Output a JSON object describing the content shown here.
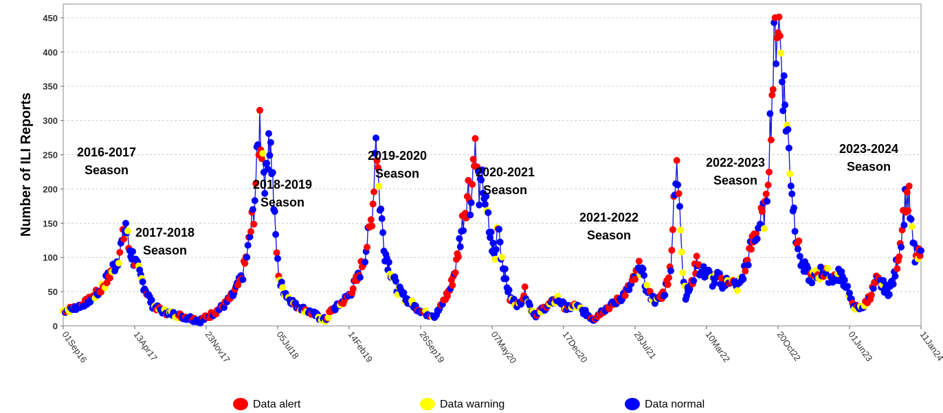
{
  "chart_data": {
    "type": "line",
    "ylabel": "Number of ILI Reports",
    "xlabel": "",
    "ylim": [
      0,
      470
    ],
    "y_ticks": [
      0,
      50,
      100,
      150,
      200,
      250,
      300,
      350,
      400,
      450
    ],
    "x_tick_labels": [
      "01Sep16",
      "13Apr17",
      "23Nov17",
      "05Jul18",
      "14Feb19",
      "26Sep19",
      "07May20",
      "17Dec20",
      "29Jul21",
      "10Mar22",
      "20Oct22",
      "01Jun23",
      "11Jan24"
    ],
    "grid": true,
    "legend_position": "bottom",
    "colors": {
      "line": "#1a1ad6",
      "alert": "#ff0000",
      "warning": "#ffff00",
      "normal": "#0000ff",
      "grid": "#cccccc"
    },
    "series": [
      {
        "name": "Data alert",
        "color": "#ff0000"
      },
      {
        "name": "Data warning",
        "color": "#ffff00"
      },
      {
        "name": "Data normal",
        "color": "#0000ff"
      }
    ],
    "seasons": [
      {
        "lines": [
          "2016-2017",
          "Season"
        ]
      },
      {
        "lines": [
          "2017-2018",
          "Season"
        ]
      },
      {
        "lines": [
          "2018-2019",
          "Season"
        ]
      },
      {
        "lines": [
          "2019-2020",
          "Season"
        ]
      },
      {
        "lines": [
          "2020-2021",
          "Season"
        ]
      },
      {
        "lines": [
          "2021-2022",
          "Season"
        ]
      },
      {
        "lines": [
          "2022-2023",
          "Season"
        ]
      },
      {
        "lines": [
          "2023-2024",
          "Season"
        ]
      }
    ],
    "weekly_profile": [
      [
        0,
        22
      ],
      [
        3,
        25
      ],
      [
        6,
        30
      ],
      [
        9,
        38
      ],
      [
        12,
        50
      ],
      [
        15,
        70
      ],
      [
        18,
        95
      ],
      [
        20,
        125
      ],
      [
        21,
        150
      ],
      [
        22,
        115
      ],
      [
        24,
        95
      ],
      [
        26,
        70
      ],
      [
        28,
        50
      ],
      [
        30,
        30
      ],
      [
        33,
        22
      ],
      [
        36,
        18
      ],
      [
        40,
        14
      ],
      [
        44,
        10
      ],
      [
        46,
        8
      ],
      [
        48,
        12
      ],
      [
        51,
        20
      ],
      [
        54,
        30
      ],
      [
        57,
        45
      ],
      [
        60,
        70
      ],
      [
        62,
        110
      ],
      [
        64,
        170
      ],
      [
        65,
        230
      ],
      [
        66,
        300
      ],
      [
        67,
        250
      ],
      [
        68,
        210
      ],
      [
        69,
        290
      ],
      [
        70,
        240
      ],
      [
        71,
        150
      ],
      [
        72,
        90
      ],
      [
        73,
        60
      ],
      [
        75,
        45
      ],
      [
        78,
        30
      ],
      [
        82,
        22
      ],
      [
        85,
        15
      ],
      [
        88,
        8
      ],
      [
        90,
        22
      ],
      [
        93,
        32
      ],
      [
        96,
        45
      ],
      [
        99,
        70
      ],
      [
        101,
        100
      ],
      [
        103,
        140
      ],
      [
        104,
        180
      ],
      [
        105,
        290
      ],
      [
        106,
        200
      ],
      [
        107,
        150
      ],
      [
        108,
        110
      ],
      [
        110,
        80
      ],
      [
        112,
        55
      ],
      [
        115,
        40
      ],
      [
        119,
        25
      ],
      [
        122,
        18
      ],
      [
        125,
        15
      ],
      [
        127,
        30
      ],
      [
        130,
        55
      ],
      [
        132,
        90
      ],
      [
        134,
        150
      ],
      [
        136,
        200
      ],
      [
        137,
        180
      ],
      [
        138,
        270
      ],
      [
        139,
        220
      ],
      [
        140,
        190
      ],
      [
        141,
        210
      ],
      [
        142,
        170
      ],
      [
        143,
        140
      ],
      [
        144,
        120
      ],
      [
        145,
        95
      ],
      [
        146,
        160
      ],
      [
        147,
        110
      ],
      [
        148,
        80
      ],
      [
        150,
        40
      ],
      [
        153,
        30
      ],
      [
        155,
        50
      ],
      [
        157,
        25
      ],
      [
        159,
        15
      ],
      [
        161,
        25
      ],
      [
        163,
        30
      ],
      [
        166,
        40
      ],
      [
        169,
        25
      ],
      [
        172,
        30
      ],
      [
        175,
        20
      ],
      [
        178,
        10
      ],
      [
        181,
        22
      ],
      [
        184,
        30
      ],
      [
        187,
        40
      ],
      [
        190,
        55
      ],
      [
        192,
        70
      ],
      [
        194,
        90
      ],
      [
        195,
        65
      ],
      [
        197,
        45
      ],
      [
        199,
        35
      ],
      [
        202,
        50
      ],
      [
        204,
        90
      ],
      [
        205,
        170
      ],
      [
        206,
        225
      ],
      [
        207,
        195
      ],
      [
        208,
        80
      ],
      [
        209,
        45
      ],
      [
        211,
        60
      ],
      [
        213,
        100
      ],
      [
        214,
        75
      ],
      [
        216,
        80
      ],
      [
        218,
        65
      ],
      [
        220,
        70
      ],
      [
        222,
        60
      ],
      [
        224,
        70
      ],
      [
        226,
        55
      ],
      [
        228,
        70
      ],
      [
        230,
        100
      ],
      [
        232,
        130
      ],
      [
        234,
        150
      ],
      [
        236,
        170
      ],
      [
        237,
        260
      ],
      [
        238,
        340
      ],
      [
        239,
        420
      ],
      [
        240,
        455
      ],
      [
        241,
        400
      ],
      [
        242,
        340
      ],
      [
        243,
        290
      ],
      [
        244,
        240
      ],
      [
        245,
        180
      ],
      [
        246,
        140
      ],
      [
        247,
        110
      ],
      [
        248,
        90
      ],
      [
        250,
        75
      ],
      [
        252,
        70
      ],
      [
        255,
        80
      ],
      [
        258,
        70
      ],
      [
        261,
        75
      ],
      [
        263,
        60
      ],
      [
        265,
        30
      ],
      [
        267,
        25
      ],
      [
        269,
        30
      ],
      [
        271,
        45
      ],
      [
        273,
        65
      ],
      [
        275,
        60
      ],
      [
        277,
        50
      ],
      [
        279,
        70
      ],
      [
        280,
        95
      ],
      [
        281,
        120
      ],
      [
        282,
        160
      ],
      [
        283,
        190
      ],
      [
        284,
        180
      ],
      [
        285,
        130
      ],
      [
        286,
        100
      ]
    ]
  }
}
